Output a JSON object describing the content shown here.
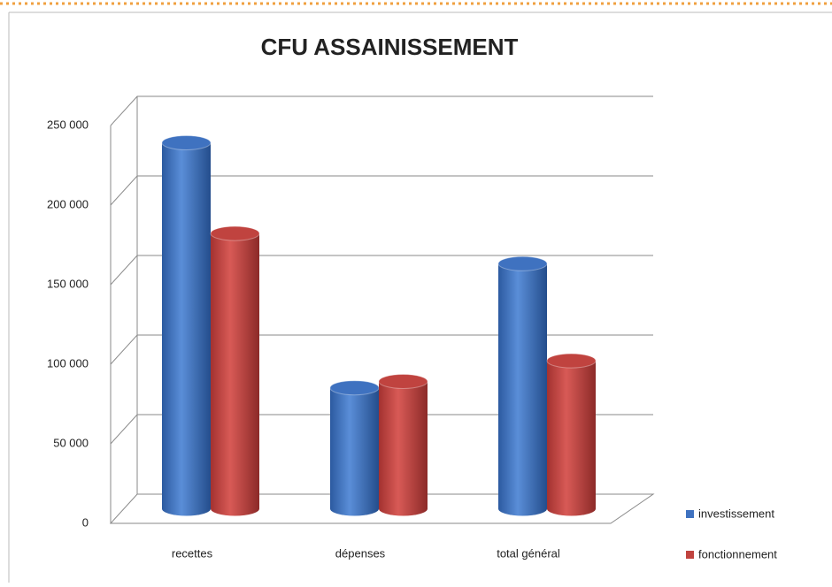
{
  "chart_data": {
    "type": "bar3d",
    "title": "CFU ASSAINISSEMENT",
    "categories": [
      "recettes",
      "dépenses",
      "total général"
    ],
    "series": [
      {
        "name": "investissement",
        "color": "#3f72c0",
        "values": [
          230000,
          76000,
          154000
        ]
      },
      {
        "name": "fonctionnement",
        "color": "#c0433f",
        "values": [
          173000,
          80000,
          93000
        ]
      }
    ],
    "ylim": [
      0,
      250000
    ],
    "yticks": [
      0,
      {
        "value": 50000,
        "label": "50 000"
      },
      {
        "value": 100000,
        "label": "100 000"
      },
      {
        "value": 150000,
        "label": "150 000"
      },
      {
        "value": 200000,
        "label": "200 000"
      },
      {
        "value": 250000,
        "label": "250 000"
      }
    ],
    "grid": true,
    "legend": "right"
  }
}
